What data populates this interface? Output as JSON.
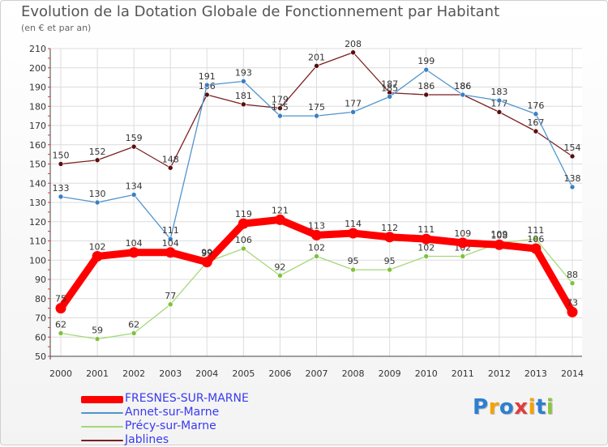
{
  "title": "Evolution de la Dotation Globale de Fonctionnement par Habitant",
  "subtitle": "(en € et par an)",
  "logo": {
    "text": "Proxiti",
    "colors": [
      "#2d7fd1",
      "#f5a300",
      "#2d7fd1",
      "#e23b3b",
      "#f5a300",
      "#2d7fd1",
      "#8cc63f"
    ]
  },
  "chart_data": {
    "type": "line",
    "title": "Evolution de la Dotation Globale de Fonctionnement par Habitant",
    "subtitle": "(en € et par an)",
    "xlabel": "",
    "ylabel": "",
    "ylim": [
      50,
      210
    ],
    "yticks": [
      50,
      60,
      70,
      80,
      90,
      100,
      110,
      120,
      130,
      140,
      150,
      160,
      170,
      180,
      190,
      200,
      210
    ],
    "categories": [
      "2000",
      "2001",
      "2002",
      "2003",
      "2004",
      "2005",
      "2006",
      "2007",
      "2008",
      "2009",
      "2010",
      "2011",
      "2012",
      "2013",
      "2014"
    ],
    "grid": true,
    "legend": "bottom-left",
    "series": [
      {
        "name": "Jablines",
        "color": "#7a1f1f",
        "marker_color": "#5a0e0e",
        "values": [
          150,
          152,
          159,
          148,
          186,
          181,
          179,
          201,
          208,
          187,
          186,
          186,
          177,
          167,
          154
        ]
      },
      {
        "name": "Annet-sur-Marne",
        "color": "#4f94cd",
        "marker_color": "#3a7fc2",
        "values": [
          133,
          130,
          134,
          111,
          191,
          193,
          175,
          175,
          177,
          185,
          199,
          186,
          183,
          176,
          138
        ]
      },
      {
        "name": "Précy-sur-Marne",
        "color": "#a3d977",
        "marker_color": "#7fc23b",
        "values": [
          62,
          59,
          62,
          77,
          99,
          106,
          92,
          102,
          95,
          95,
          102,
          102,
          109,
          111,
          88
        ]
      },
      {
        "name": "FRESNES-SUR-MARNE",
        "color": "#ff0000",
        "marker_color": "#ff0000",
        "values": [
          75,
          102,
          104,
          104,
          99,
          119,
          121,
          113,
          114,
          112,
          111,
          109,
          108,
          106,
          73
        ]
      }
    ],
    "legend_order": [
      "FRESNES-SUR-MARNE",
      "Annet-sur-Marne",
      "Précy-sur-Marne",
      "Jablines"
    ]
  }
}
